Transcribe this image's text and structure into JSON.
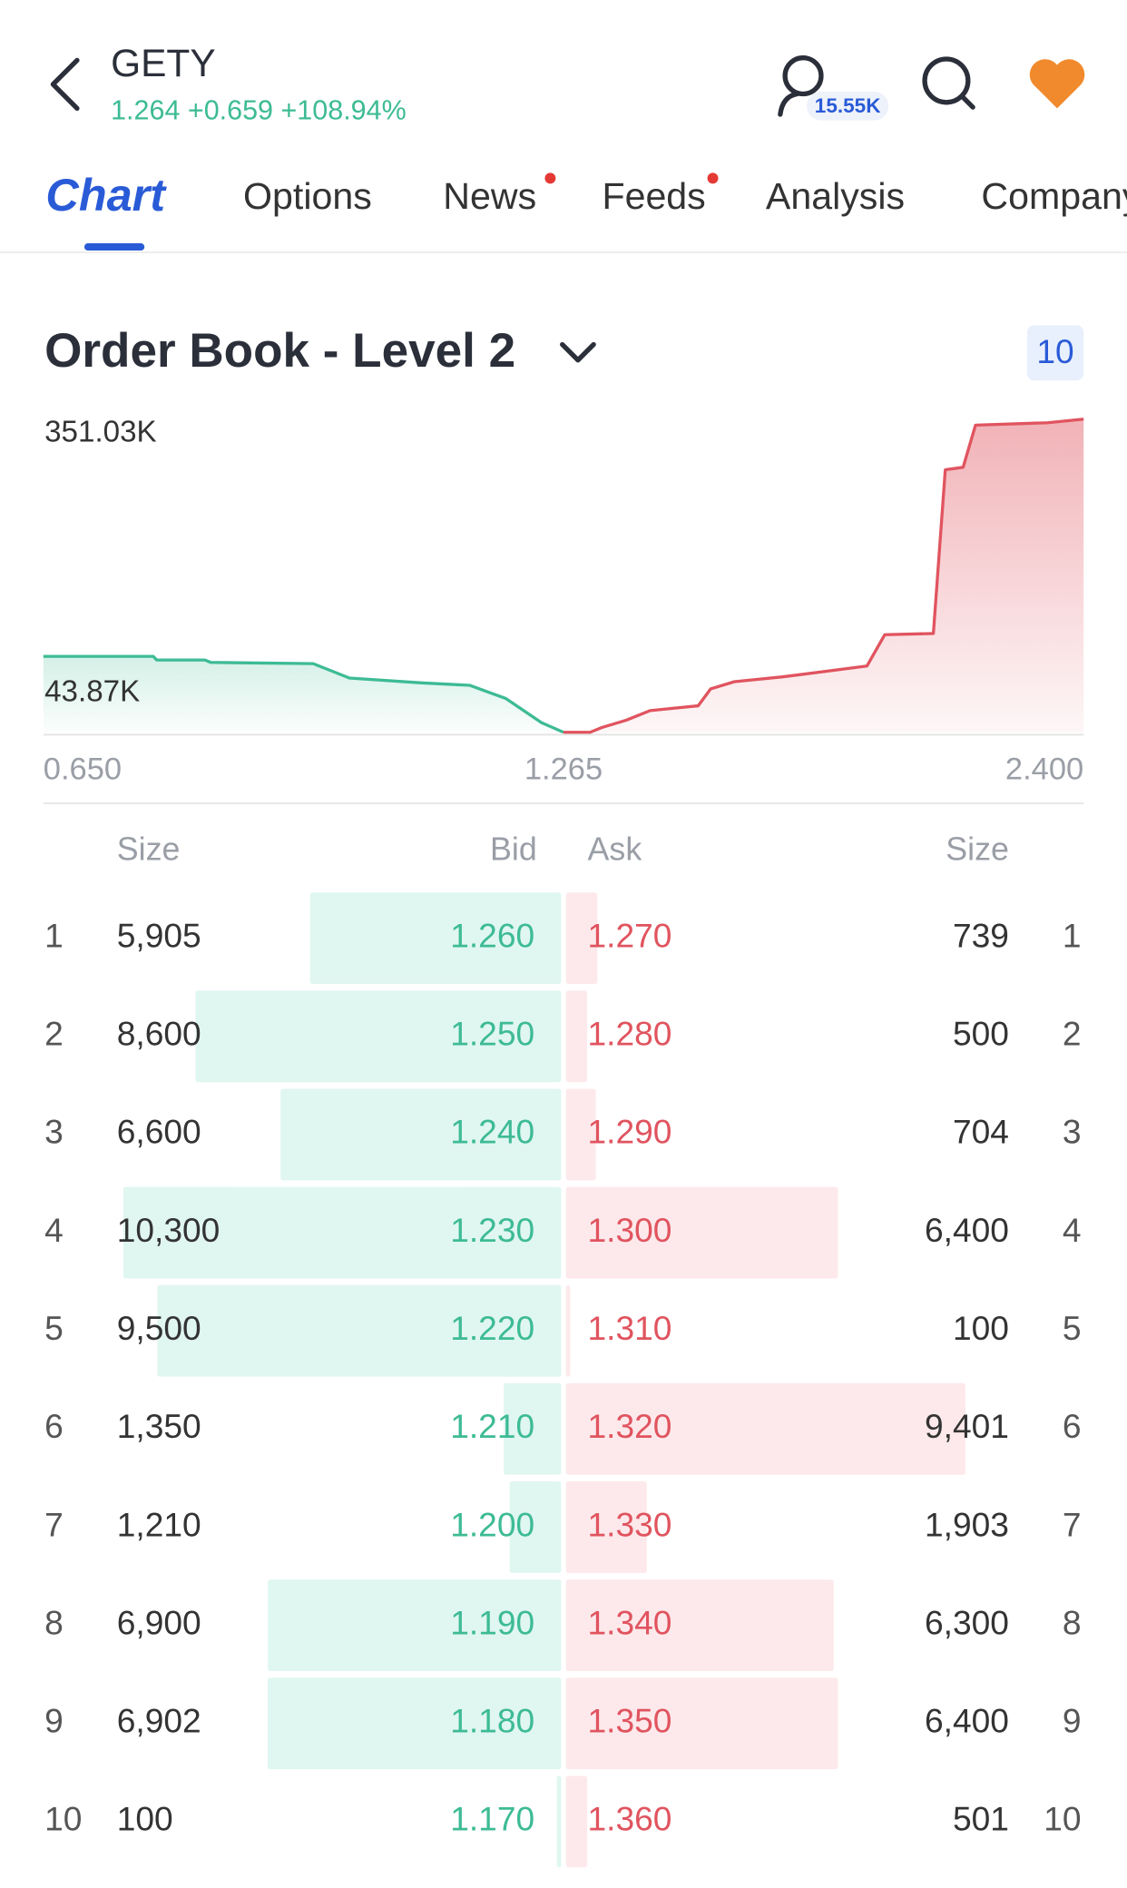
{
  "header": {
    "symbol": "GETY",
    "quote": "1.264 +0.659 +108.94%",
    "followers": "15.55K"
  },
  "tabs": [
    "Chart",
    "Options",
    "News",
    "Feeds",
    "Analysis",
    "Company"
  ],
  "order_book": {
    "title": "Order Book - Level 2",
    "depth_setting": "10",
    "columns": [
      "Size",
      "Bid",
      "Ask",
      "Size"
    ],
    "levels": [
      1,
      2,
      3,
      4,
      5,
      6,
      7,
      8,
      9,
      10
    ],
    "bids": {
      "color": "#e0f6f1",
      "sizes": [
        5905,
        8600,
        6600,
        10300,
        9500,
        1350,
        1210,
        6900,
        6902,
        100
      ],
      "size_labels": [
        "5,905",
        "8,600",
        "6,600",
        "10,300",
        "9,500",
        "1,350",
        "1,210",
        "6,900",
        "6,902",
        "100"
      ],
      "prices": [
        "1.260",
        "1.250",
        "1.240",
        "1.230",
        "1.220",
        "1.210",
        "1.200",
        "1.190",
        "1.180",
        "1.170"
      ]
    },
    "asks": {
      "color": "#fde9eb",
      "sizes": [
        739,
        500,
        704,
        6400,
        100,
        9401,
        1903,
        6300,
        6400,
        501
      ],
      "size_labels": [
        "739",
        "500",
        "704",
        "6,400",
        "100",
        "9,401",
        "1,903",
        "6,300",
        "6,400",
        "501"
      ],
      "prices": [
        "1.270",
        "1.280",
        "1.290",
        "1.300",
        "1.310",
        "1.320",
        "1.330",
        "1.340",
        "1.350",
        "1.360"
      ]
    }
  },
  "chart_data": {
    "type": "area",
    "series": [
      {
        "color": "#3dbb94",
        "x": [
          0.65,
          0.78,
          0.784,
          0.841,
          0.848,
          0.969,
          1.012,
          1.097,
          1.154,
          1.197,
          1.239,
          1.265
        ],
        "values": [
          85000,
          85000,
          81000,
          81000,
          78300,
          77000,
          60750,
          55350,
          52650,
          37800,
          10800,
          0
        ]
      },
      {
        "color": "#e0545f",
        "x": [
          1.265,
          1.323,
          1.349,
          1.402,
          1.454,
          1.559,
          1.586,
          1.638,
          1.743,
          1.927,
          1.966,
          2.072,
          2.098,
          2.137,
          2.164,
          2.321,
          2.4
        ],
        "values": [
          0,
          0,
          5400,
          13500,
          24300,
          29700,
          48600,
          56700,
          62100,
          74250,
          109350,
          110700,
          294300,
          297000,
          344250,
          347000,
          351030
        ]
      }
    ],
    "xlim": [
      0.65,
      2.4
    ],
    "xticks": [
      {
        "value": 0.65,
        "label": "0.650"
      },
      {
        "value": 1.265,
        "label": "1.265"
      },
      {
        "value": 2.4,
        "label": "2.400"
      }
    ],
    "ylim": [
      0,
      351030
    ],
    "yticks": [
      {
        "value": 43870,
        "label": "43.87K"
      },
      {
        "value": 351030,
        "label": "351.03K"
      }
    ]
  }
}
